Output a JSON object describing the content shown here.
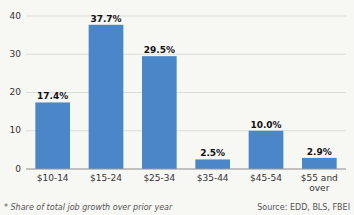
{
  "chart_data": {
    "type": "bar",
    "categories": [
      "$10-14",
      "$15-24",
      "$25-34",
      "$35-44",
      "$45-54",
      "$55 and\nover"
    ],
    "values": [
      17.4,
      37.7,
      29.5,
      2.5,
      10.0,
      2.9
    ],
    "value_labels": [
      "17.4%",
      "37.7%",
      "29.5%",
      "2.5%",
      "10.0%",
      "2.9%"
    ],
    "data_labels": true,
    "color": "#4a86c8",
    "ylim": [
      0,
      40
    ],
    "yticks": [
      0,
      10,
      20,
      30,
      40
    ],
    "grid": true,
    "annotations": [
      "* Share of total job growth over prior year",
      "Source: EDD, BLS, FBEI"
    ]
  }
}
